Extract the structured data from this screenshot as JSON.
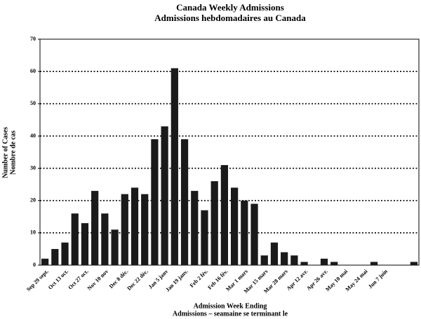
{
  "chart_data": {
    "type": "bar",
    "title": "Canada Weekly Admissions",
    "subtitle": "Admissions hebdomadaires au Canada",
    "x_label": [
      "Admission Week Ending",
      "Admissions – seamaine se terminant le"
    ],
    "y_label": [
      "Number of Cases",
      "Nombre de cas"
    ],
    "categories": [
      "Sep 29 sept.",
      null,
      "Oct 13 oct.",
      null,
      "Oct 27 oct.",
      null,
      "Nov 10 nov",
      null,
      "Dec 8 déc.",
      null,
      "Dec 22 déc.",
      null,
      "Jan 5 janv",
      null,
      "Jan 19 janv.",
      null,
      "Feb 2 fév.",
      null,
      "Feb 16 fév.",
      null,
      "Mar 1 mars",
      null,
      "Mar 15 mars",
      null,
      "Mar 28 mars",
      null,
      "Apr 12 avr.",
      null,
      "Apr 26 avr.",
      null,
      "May 10 mai",
      null,
      "May 24 mai",
      null,
      "Jun 7 juin",
      null,
      null,
      null
    ],
    "values": [
      2,
      5,
      7,
      16,
      13,
      23,
      16,
      11,
      22,
      24,
      22,
      39,
      43,
      61,
      39,
      23,
      17,
      26,
      31,
      24,
      20,
      19,
      3,
      7,
      4,
      3,
      1,
      0,
      2,
      1,
      0,
      0,
      0,
      1,
      0,
      0,
      0,
      1
    ],
    "color": "#1a1a1a",
    "ylim": [
      0,
      70
    ],
    "yticks": [
      0,
      10,
      20,
      30,
      40,
      50,
      60,
      70
    ],
    "grid": true
  }
}
